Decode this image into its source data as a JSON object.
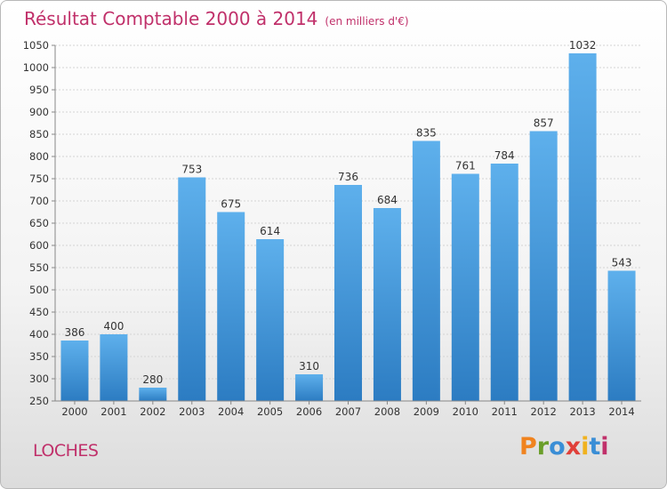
{
  "header": {
    "title": "Résultat Comptable 2000 à 2014",
    "subtitle": "(en milliers d'€)"
  },
  "footer": {
    "city": "LOCHES",
    "logo_text": "Proxiti"
  },
  "colors": {
    "title": "#c0306a",
    "bar_top": "#5eb0ec",
    "bar_bottom": "#2c7cc2",
    "logo_letters": [
      "#f0831f",
      "#6a9e2a",
      "#3a8ed6",
      "#e0403a",
      "#f0b21f",
      "#3a8ed6",
      "#c0306a"
    ]
  },
  "chart_data": {
    "type": "bar",
    "title": "Résultat Comptable 2000 à 2014",
    "subtitle": "(en milliers d'€)",
    "categories": [
      "2000",
      "2001",
      "2002",
      "2003",
      "2004",
      "2005",
      "2006",
      "2007",
      "2008",
      "2009",
      "2010",
      "2011",
      "2012",
      "2013",
      "2014"
    ],
    "values": [
      386,
      400,
      280,
      753,
      675,
      614,
      310,
      736,
      684,
      835,
      761,
      784,
      857,
      1032,
      543
    ],
    "ylim": [
      250,
      1050
    ],
    "yticks": [
      250,
      300,
      350,
      400,
      450,
      500,
      550,
      600,
      650,
      700,
      750,
      800,
      850,
      900,
      950,
      1000,
      1050
    ],
    "grid": true,
    "legend": "none",
    "xlabel": "",
    "ylabel": ""
  }
}
